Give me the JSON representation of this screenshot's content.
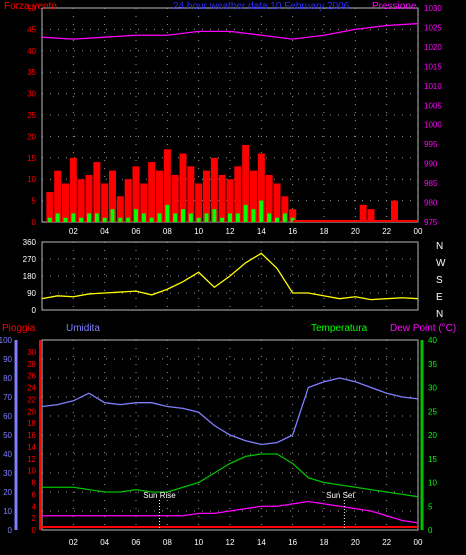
{
  "chart_data": [
    {
      "type": "bar",
      "title": "24 hour weather data 10 February 2006",
      "left_label": "Forza vento",
      "right_label": "Pressione",
      "x_ticks": [
        "02",
        "04",
        "06",
        "08",
        "10",
        "12",
        "14",
        "16",
        "18",
        "20",
        "22",
        "00"
      ],
      "left_ticks": [
        "0",
        "5",
        "10",
        "15",
        "20",
        "25",
        "30",
        "35",
        "40",
        "45",
        "50"
      ],
      "right_ticks": [
        "975",
        "980",
        "985",
        "990",
        "995",
        "1000",
        "1005",
        "1010",
        "1015",
        "1020",
        "1025",
        "1030"
      ],
      "ylim_left": [
        0,
        50
      ],
      "ylim_right": [
        975,
        1030
      ],
      "series": [
        {
          "name": "Forza vento",
          "color": "#ff0000",
          "x": [
            0.5,
            1,
            1.5,
            2,
            2.5,
            3,
            3.5,
            4,
            4.5,
            5,
            5.5,
            6,
            6.5,
            7,
            7.5,
            8,
            8.5,
            9,
            9.5,
            10,
            10.5,
            11,
            11.5,
            12,
            12.5,
            13,
            13.5,
            14,
            14.5,
            15,
            15.5,
            16,
            20.5,
            21,
            22.5
          ],
          "values": [
            7,
            12,
            9,
            15,
            10,
            11,
            14,
            9,
            12,
            6,
            10,
            13,
            9,
            14,
            12,
            17,
            11,
            16,
            13,
            9,
            12,
            15,
            11,
            10,
            13,
            18,
            12,
            16,
            11,
            9,
            6,
            3,
            4,
            3,
            5
          ]
        },
        {
          "name": "gust-green",
          "color": "#00ff00",
          "x": [
            0.5,
            1,
            1.5,
            2,
            2.5,
            3,
            3.5,
            4,
            4.5,
            5,
            5.5,
            6,
            6.5,
            7,
            7.5,
            8,
            8.5,
            9,
            9.5,
            10,
            10.5,
            11,
            11.5,
            12,
            12.5,
            13,
            13.5,
            14,
            14.5,
            15,
            15.5,
            16
          ],
          "values": [
            1,
            2,
            1,
            2,
            1,
            2,
            2,
            1,
            3,
            1,
            1,
            3,
            2,
            1,
            2,
            4,
            2,
            3,
            2,
            1,
            2,
            3,
            1,
            2,
            2,
            4,
            3,
            5,
            2,
            1,
            2,
            1
          ]
        },
        {
          "name": "Pressione",
          "color": "#ff00ff",
          "x": [
            0,
            2,
            4,
            6,
            8,
            10,
            12,
            14,
            16,
            18,
            20,
            22,
            24
          ],
          "values": [
            1022.5,
            1022,
            1022.5,
            1023,
            1023,
            1024,
            1024,
            1023,
            1022,
            1023,
            1024.5,
            1025.5,
            1026
          ]
        }
      ]
    },
    {
      "type": "line",
      "right_labels": [
        "N",
        "W",
        "S",
        "E",
        "N"
      ],
      "x_ticks": [
        "02",
        "04",
        "06",
        "08",
        "10",
        "12",
        "14",
        "16",
        "18",
        "20",
        "22",
        "00"
      ],
      "left_ticks": [
        "0",
        "90",
        "180",
        "270",
        "360"
      ],
      "ylim": [
        0,
        360
      ],
      "series": [
        {
          "name": "wind-direction",
          "color": "#ffff00",
          "x": [
            0,
            1,
            2,
            3,
            4,
            5,
            6,
            7,
            8,
            9,
            10,
            11,
            12,
            13,
            14,
            15,
            16,
            17,
            18,
            19,
            20,
            21,
            22,
            23,
            24
          ],
          "values": [
            60,
            75,
            70,
            85,
            90,
            95,
            100,
            80,
            110,
            150,
            200,
            120,
            180,
            250,
            300,
            220,
            90,
            90,
            75,
            60,
            70,
            55,
            60,
            65,
            60
          ]
        }
      ]
    },
    {
      "type": "line",
      "label_rain": "Pioggia",
      "label_humidity": "Umidita",
      "label_temperature": "Temperatura",
      "label_dewpoint": "Dew Point (°C)",
      "annotation_sunrise": "Sun Rise",
      "annotation_sunset": "Sun Set",
      "x_ticks": [
        "02",
        "04",
        "06",
        "08",
        "10",
        "12",
        "14",
        "16",
        "18",
        "20",
        "22",
        "00"
      ],
      "humidity_ticks": [
        "0",
        "10",
        "20",
        "30",
        "40",
        "50",
        "60",
        "70",
        "80",
        "90",
        "100"
      ],
      "rain_ticks": [
        "0",
        "2",
        "4",
        "6",
        "8",
        "10",
        "12",
        "14",
        "16",
        "18",
        "20",
        "22",
        "24",
        "26",
        "28",
        "30"
      ],
      "temp_ticks": [
        "0",
        "5",
        "10",
        "15",
        "20",
        "25",
        "30",
        "35",
        "40"
      ],
      "ylim_humidity": [
        0,
        100
      ],
      "ylim_temp": [
        0,
        40
      ],
      "sunrise_hour": 7.5,
      "sunset_hour": 19.3,
      "series": [
        {
          "name": "Umidita",
          "color": "#7f7fff",
          "x": [
            0,
            1,
            2,
            3,
            4,
            5,
            6,
            7,
            8,
            9,
            10,
            11,
            12,
            13,
            14,
            15,
            16,
            17,
            18,
            19,
            20,
            21,
            22,
            23,
            24
          ],
          "values": [
            65,
            66,
            68,
            72,
            67,
            66,
            67,
            67,
            65,
            64,
            62,
            55,
            50,
            47,
            45,
            46,
            50,
            75,
            78,
            80,
            78,
            75,
            72,
            70,
            69
          ]
        },
        {
          "name": "Temperatura",
          "color": "#00c000",
          "x": [
            0,
            1,
            2,
            3,
            4,
            5,
            6,
            7,
            8,
            9,
            10,
            11,
            12,
            13,
            14,
            15,
            16,
            17,
            18,
            19,
            20,
            21,
            22,
            23,
            24
          ],
          "values": [
            9,
            9,
            9,
            8.5,
            8,
            8,
            8.5,
            8,
            8,
            9,
            10,
            12,
            14,
            15.5,
            16,
            16,
            14,
            11,
            10,
            9.5,
            9,
            8.5,
            8,
            7.5,
            7
          ]
        },
        {
          "name": "Dew Point",
          "color": "#ff00ff",
          "x": [
            0,
            1,
            2,
            3,
            4,
            5,
            6,
            7,
            8,
            9,
            10,
            11,
            12,
            13,
            14,
            15,
            16,
            17,
            18,
            19,
            20,
            21,
            22,
            23,
            24
          ],
          "values": [
            3,
            3,
            3,
            3,
            3,
            3,
            3,
            3,
            3,
            3,
            3.5,
            3.5,
            4,
            4.5,
            5,
            5,
            5.5,
            6,
            5.5,
            5,
            4.5,
            4,
            3,
            2,
            1.5
          ]
        },
        {
          "name": "Pioggia",
          "color": "#ff0000",
          "x": [
            0,
            24
          ],
          "values": [
            0,
            0
          ]
        }
      ]
    }
  ]
}
